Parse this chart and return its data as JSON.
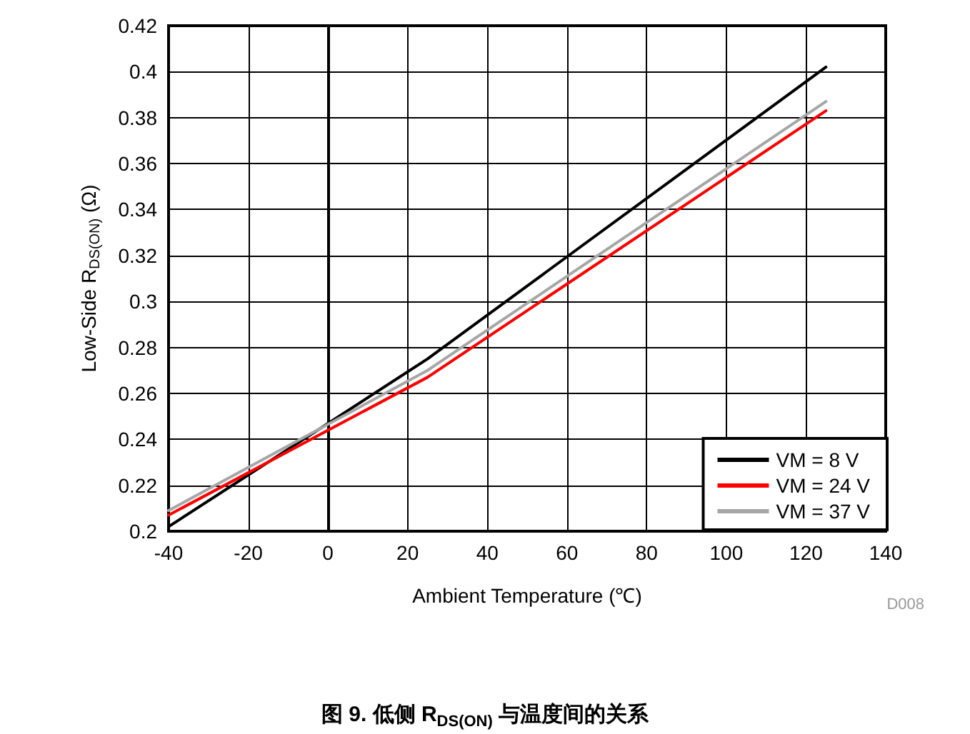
{
  "chart_data": {
    "type": "line",
    "title": "图 9. 低侧 R$_{DS(ON)}$ 与温度间的关系",
    "xlabel": "Ambient Temperature (℃)",
    "ylabel": "Low-Side R$_{DS(ON)}$ (Ω)",
    "x": [
      -40,
      25,
      125
    ],
    "series": [
      {
        "name": "VM = 8 V",
        "color": "#000000",
        "values": [
          0.202,
          0.275,
          0.402
        ]
      },
      {
        "name": "VM = 24 V",
        "color": "#ff0000",
        "values": [
          0.207,
          0.267,
          0.383
        ]
      },
      {
        "name": "VM = 37 V",
        "color": "#a6a6a6",
        "values": [
          0.209,
          0.27,
          0.387
        ]
      }
    ],
    "xlim": [
      -40,
      140
    ],
    "xticks": [
      -40,
      -20,
      0,
      20,
      40,
      60,
      80,
      100,
      120,
      140
    ],
    "ylim": [
      0.2,
      0.42
    ],
    "yticks": [
      0.2,
      0.22,
      0.24,
      0.26,
      0.28,
      0.3,
      0.32,
      0.34,
      0.36,
      0.38,
      0.4,
      0.42
    ],
    "grid": true,
    "legend": "bottom right",
    "marker": "none",
    "line_style": "solid",
    "annotations": [
      "D008"
    ]
  }
}
